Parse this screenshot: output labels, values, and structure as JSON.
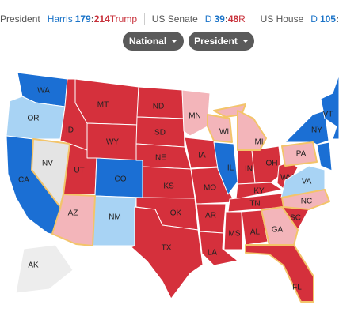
{
  "header": {
    "president": {
      "label": "President",
      "dem": "Harris",
      "dem_votes": 179,
      "sep": ":",
      "rep_votes": 214,
      "rep": "Trump"
    },
    "senate": {
      "label": "US Senate",
      "dem": "D",
      "dem_seats": 39,
      "sep": ":",
      "rep_seats": 48,
      "rep": "R"
    },
    "house": {
      "label": "US House",
      "dem": "D",
      "dem_seats": 105,
      "sep": ":"
    }
  },
  "buttons": [
    "National",
    "President"
  ],
  "map": {
    "colors": {
      "R": "#d5303c",
      "lean-R": "#f3b5ba",
      "D": "#1b6fd4",
      "lean-D": "#a8d3f4",
      "none": "#e4e4e4",
      "alaska": "#ededed"
    },
    "outline_color": "#f3c46a",
    "states": [
      {
        "label": "WA",
        "status": "D"
      },
      {
        "label": "OR",
        "status": "lean-D"
      },
      {
        "label": "CA",
        "status": "D"
      },
      {
        "label": "ID",
        "status": "R"
      },
      {
        "label": "MT",
        "status": "R"
      },
      {
        "label": "WY",
        "status": "R"
      },
      {
        "label": "UT",
        "status": "R"
      },
      {
        "label": "CO",
        "status": "D"
      },
      {
        "label": "NM",
        "status": "lean-D"
      },
      {
        "label": "ND",
        "status": "R"
      },
      {
        "label": "SD",
        "status": "R"
      },
      {
        "label": "NE",
        "status": "R"
      },
      {
        "label": "KS",
        "status": "R"
      },
      {
        "label": "OK",
        "status": "R"
      },
      {
        "label": "TX",
        "status": "R"
      },
      {
        "label": "MN",
        "status": "lean-R"
      },
      {
        "label": "IA",
        "status": "R"
      },
      {
        "label": "MO",
        "status": "R"
      },
      {
        "label": "AR",
        "status": "R"
      },
      {
        "label": "LA",
        "status": "R"
      },
      {
        "label": "IL",
        "status": "D"
      },
      {
        "label": "IN",
        "status": "R"
      },
      {
        "label": "OH",
        "status": "R"
      },
      {
        "label": "KY",
        "status": "R"
      },
      {
        "label": "TN",
        "status": "R"
      },
      {
        "label": "MS",
        "status": "R"
      },
      {
        "label": "AL",
        "status": "R"
      },
      {
        "label": "SC",
        "status": "R"
      },
      {
        "label": "WV",
        "status": "R"
      },
      {
        "label": "VA",
        "status": "lean-D"
      },
      {
        "label": "NY",
        "status": "D"
      },
      {
        "label": "VT",
        "status": "D"
      },
      {
        "label": "AK",
        "status": "alaska"
      },
      {
        "label": "NV",
        "status": "none",
        "outline": true
      },
      {
        "label": "AZ",
        "status": "lean-R",
        "outline": true
      },
      {
        "label": "WI",
        "status": "lean-R",
        "outline": true
      },
      {
        "label": "MI",
        "status": "lean-R",
        "outline": true
      },
      {
        "label": "PA",
        "status": "lean-R",
        "outline": true
      },
      {
        "label": "NC",
        "status": "lean-R",
        "outline": true
      },
      {
        "label": "GA",
        "status": "lean-R",
        "outline": true
      },
      {
        "label": "FL",
        "status": "R",
        "outline": true
      }
    ]
  }
}
